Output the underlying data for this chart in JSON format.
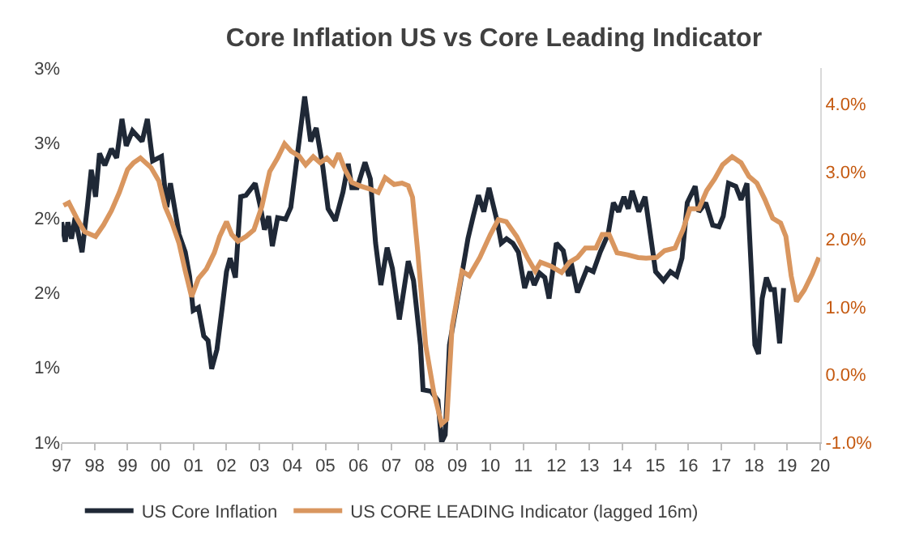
{
  "chart_data": {
    "type": "line",
    "title": "Core Inflation US vs Core Leading Indicator",
    "xlim": [
      1997,
      2020
    ],
    "xticks": [
      {
        "value": 1997,
        "label": "97"
      },
      {
        "value": 1998,
        "label": "98"
      },
      {
        "value": 1999,
        "label": "99"
      },
      {
        "value": 2000,
        "label": "00"
      },
      {
        "value": 2001,
        "label": "01"
      },
      {
        "value": 2002,
        "label": "02"
      },
      {
        "value": 2003,
        "label": "03"
      },
      {
        "value": 2004,
        "label": "04"
      },
      {
        "value": 2005,
        "label": "05"
      },
      {
        "value": 2006,
        "label": "06"
      },
      {
        "value": 2007,
        "label": "07"
      },
      {
        "value": 2008,
        "label": "08"
      },
      {
        "value": 2009,
        "label": "09"
      },
      {
        "value": 2010,
        "label": "10"
      },
      {
        "value": 2011,
        "label": "11"
      },
      {
        "value": 2012,
        "label": "12"
      },
      {
        "value": 2013,
        "label": "13"
      },
      {
        "value": 2014,
        "label": "14"
      },
      {
        "value": 2015,
        "label": "15"
      },
      {
        "value": 2016,
        "label": "16"
      },
      {
        "value": 2017,
        "label": "17"
      },
      {
        "value": 2018,
        "label": "18"
      },
      {
        "value": 2019,
        "label": "19"
      },
      {
        "value": 2020,
        "label": "20"
      }
    ],
    "ylim": [
      0.5,
      3.0
    ],
    "yticks": [
      {
        "value": 3.0,
        "label": "3%"
      },
      {
        "value": 2.5,
        "label": "3%"
      },
      {
        "value": 2.0,
        "label": "2%"
      },
      {
        "value": 1.5,
        "label": "2%"
      },
      {
        "value": 1.0,
        "label": "1%"
      },
      {
        "value": 0.5,
        "label": "1%"
      }
    ],
    "y2lim": [
      -1,
      4.53
    ],
    "y2ticks": [
      {
        "value": 4,
        "label": "4.0%"
      },
      {
        "value": 3,
        "label": "3.0%"
      },
      {
        "value": 2,
        "label": "2.0%"
      },
      {
        "value": 1,
        "label": "1.0%"
      },
      {
        "value": 0,
        "label": "0.0%"
      },
      {
        "value": -1,
        "label": "-1.0%"
      }
    ],
    "grid": false,
    "legend": "bottom",
    "line_style": "solid",
    "marker": "none",
    "series": [
      {
        "name": "US Core Inflation",
        "color": "#1f2836",
        "x": [
          1997.0,
          1997.11,
          1997.19,
          1997.3,
          1997.41,
          1997.62,
          1997.78,
          1997.9,
          1998.03,
          1998.15,
          1998.31,
          1998.51,
          1998.67,
          1998.83,
          1998.96,
          1999.15,
          1999.44,
          1999.6,
          1999.76,
          2000.03,
          2000.19,
          2000.3,
          2000.56,
          2000.75,
          2000.88,
          2000.99,
          2001.15,
          2001.31,
          2001.44,
          2001.55,
          2001.71,
          2001.87,
          2002.0,
          2002.11,
          2002.27,
          2002.43,
          2002.59,
          2002.87,
          2003.03,
          2003.15,
          2003.28,
          2003.39,
          2003.55,
          2003.79,
          2003.95,
          2004.2,
          2004.37,
          2004.55,
          2004.72,
          2004.92,
          2005.08,
          2005.3,
          2005.53,
          2005.69,
          2005.8,
          2005.96,
          2006.2,
          2006.36,
          2006.52,
          2006.68,
          2006.87,
          2007.03,
          2007.24,
          2007.51,
          2007.67,
          2007.88,
          2007.96,
          2008.2,
          2008.41,
          2008.52,
          2008.63,
          2008.76,
          2009.08,
          2009.32,
          2009.48,
          2009.64,
          2009.8,
          2009.96,
          2010.2,
          2010.33,
          2010.49,
          2010.68,
          2010.85,
          2011.04,
          2011.2,
          2011.33,
          2011.49,
          2011.65,
          2011.78,
          2012.0,
          2012.21,
          2012.37,
          2012.45,
          2012.64,
          2012.93,
          2013.12,
          2013.33,
          2013.57,
          2013.73,
          2013.89,
          2014.05,
          2014.18,
          2014.3,
          2014.5,
          2014.69,
          2014.85,
          2015.01,
          2015.25,
          2015.46,
          2015.65,
          2015.81,
          2015.97,
          2016.21,
          2016.32,
          2016.53,
          2016.74,
          2016.93,
          2017.06,
          2017.22,
          2017.44,
          2017.6,
          2017.78,
          2017.92,
          2018.02,
          2018.13,
          2018.24,
          2018.37,
          2018.5,
          2018.61,
          2018.77,
          2018.89
        ],
        "values": [
          1.97,
          1.84,
          1.97,
          1.86,
          2.0,
          1.77,
          2.07,
          2.32,
          2.14,
          2.43,
          2.35,
          2.46,
          2.4,
          2.66,
          2.48,
          2.58,
          2.51,
          2.66,
          2.38,
          2.41,
          2.07,
          2.23,
          1.89,
          1.77,
          1.61,
          1.38,
          1.4,
          1.21,
          1.18,
          0.99,
          1.12,
          1.4,
          1.64,
          1.73,
          1.6,
          2.14,
          2.15,
          2.23,
          2.07,
          1.92,
          2.01,
          1.81,
          2.0,
          1.99,
          2.07,
          2.51,
          2.81,
          2.51,
          2.6,
          2.34,
          2.06,
          1.98,
          2.17,
          2.36,
          2.2,
          2.2,
          2.37,
          2.26,
          1.83,
          1.55,
          1.8,
          1.66,
          1.32,
          1.71,
          1.58,
          1.15,
          0.85,
          0.84,
          0.78,
          0.5,
          0.55,
          1.15,
          1.55,
          1.86,
          2.01,
          2.15,
          2.04,
          2.2,
          1.98,
          1.83,
          1.86,
          1.83,
          1.77,
          1.53,
          1.64,
          1.55,
          1.63,
          1.6,
          1.46,
          1.83,
          1.78,
          1.61,
          1.7,
          1.5,
          1.66,
          1.64,
          1.77,
          1.89,
          2.1,
          2.04,
          2.14,
          2.06,
          2.18,
          2.04,
          2.14,
          1.89,
          1.64,
          1.58,
          1.64,
          1.61,
          1.73,
          2.1,
          2.21,
          2.04,
          2.1,
          1.95,
          1.94,
          2.01,
          2.23,
          2.21,
          2.12,
          2.23,
          1.61,
          1.15,
          1.09,
          1.46,
          1.6,
          1.52,
          1.52,
          1.16,
          1.53
        ]
      },
      {
        "name": "US CORE LEADING Indicator (lagged 16m)",
        "color": "#d9965f",
        "axis": "y2",
        "x": [
          1997.06,
          1997.22,
          1997.46,
          1997.7,
          1998.03,
          1998.27,
          1998.51,
          1998.75,
          1999.0,
          1999.18,
          1999.39,
          1999.71,
          1999.95,
          2000.14,
          2000.35,
          2000.56,
          2000.75,
          2000.94,
          2001.15,
          2001.39,
          2001.63,
          2001.79,
          2002.0,
          2002.16,
          2002.35,
          2002.59,
          2002.83,
          2003.07,
          2003.31,
          2003.55,
          2003.76,
          2003.96,
          2004.2,
          2004.4,
          2004.63,
          2004.84,
          2005.04,
          2005.24,
          2005.4,
          2005.59,
          2005.8,
          2006.04,
          2006.36,
          2006.6,
          2006.81,
          2007.08,
          2007.32,
          2007.51,
          2007.64,
          2007.8,
          2008.04,
          2008.28,
          2008.52,
          2008.68,
          2008.84,
          2009.14,
          2009.36,
          2009.68,
          2010.0,
          2010.24,
          2010.48,
          2010.8,
          2011.12,
          2011.36,
          2011.52,
          2011.84,
          2012.16,
          2012.4,
          2012.64,
          2012.88,
          2013.2,
          2013.39,
          2013.6,
          2013.84,
          2014.16,
          2014.48,
          2014.72,
          2015.04,
          2015.28,
          2015.6,
          2015.84,
          2016.05,
          2016.32,
          2016.56,
          2016.8,
          2017.04,
          2017.33,
          2017.6,
          2017.84,
          2018.08,
          2018.32,
          2018.56,
          2018.8,
          2018.96,
          2019.12,
          2019.28,
          2019.52,
          2019.76,
          2019.96
        ],
        "values": [
          2.5,
          2.54,
          2.31,
          2.11,
          2.04,
          2.21,
          2.42,
          2.69,
          3.03,
          3.13,
          3.2,
          3.06,
          2.86,
          2.48,
          2.24,
          1.94,
          1.53,
          1.15,
          1.42,
          1.56,
          1.8,
          2.04,
          2.26,
          2.07,
          1.97,
          2.04,
          2.14,
          2.48,
          3.0,
          3.2,
          3.41,
          3.3,
          3.23,
          3.1,
          3.22,
          3.13,
          3.2,
          3.1,
          3.27,
          3.03,
          2.84,
          2.79,
          2.74,
          2.69,
          2.91,
          2.81,
          2.83,
          2.79,
          2.62,
          1.8,
          0.43,
          -0.25,
          -0.73,
          -0.66,
          0.71,
          1.53,
          1.46,
          1.73,
          2.07,
          2.29,
          2.26,
          2.04,
          1.73,
          1.53,
          1.66,
          1.6,
          1.51,
          1.66,
          1.73,
          1.87,
          1.87,
          2.07,
          2.07,
          1.8,
          1.77,
          1.73,
          1.72,
          1.73,
          1.83,
          1.87,
          2.14,
          2.45,
          2.45,
          2.72,
          2.89,
          3.1,
          3.22,
          3.13,
          2.93,
          2.83,
          2.59,
          2.31,
          2.24,
          2.04,
          1.46,
          1.08,
          1.25,
          1.49,
          1.73
        ]
      }
    ]
  }
}
